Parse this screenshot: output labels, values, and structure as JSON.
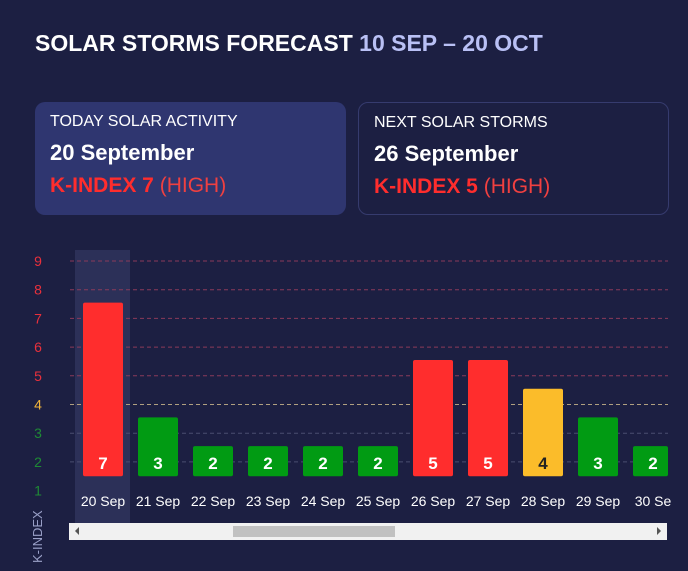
{
  "header": {
    "title": "SOLAR STORMS FORECAST",
    "range": "10 SEP – 20 OCT"
  },
  "today": {
    "label": "TODAY SOLAR ACTIVITY",
    "date": "20 September",
    "kindex": "K-INDEX 7",
    "level": "(HIGH)"
  },
  "next": {
    "label": "NEXT SOLAR STORMS",
    "date": "26 September",
    "kindex": "K-INDEX 5",
    "level": "(HIGH)"
  },
  "colors": {
    "high": "#ff2d2d",
    "medium": "#fbbc2a",
    "low": "#019b13",
    "bg": "#1c1f42"
  },
  "chart_data": {
    "type": "bar",
    "ylabel": "K-INDEX",
    "ylim": [
      1,
      9
    ],
    "yticks": [
      9,
      8,
      7,
      6,
      5,
      4,
      3,
      2,
      1
    ],
    "categories": [
      "20 Sep",
      "21 Sep",
      "22 Sep",
      "23 Sep",
      "24 Sep",
      "25 Sep",
      "26 Sep",
      "27 Sep",
      "28 Sep",
      "29 Sep",
      "30 Se"
    ],
    "values": [
      7,
      3,
      2,
      2,
      2,
      2,
      5,
      5,
      4,
      3,
      2
    ],
    "highlighted": "20 Sep",
    "grid": true
  }
}
